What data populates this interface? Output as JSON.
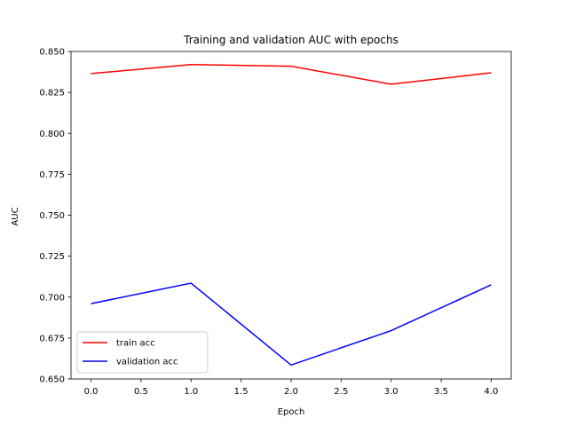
{
  "chart_data": {
    "type": "line",
    "title": "Training and validation AUC with epochs",
    "xlabel": "Epoch",
    "ylabel": "AUC",
    "xlim": [
      -0.2,
      4.2
    ],
    "ylim": [
      0.65,
      0.85
    ],
    "x_ticks": [
      "0.0",
      "0.5",
      "1.0",
      "1.5",
      "2.0",
      "2.5",
      "3.0",
      "3.5",
      "4.0"
    ],
    "y_ticks": [
      "0.650",
      "0.675",
      "0.700",
      "0.725",
      "0.750",
      "0.775",
      "0.800",
      "0.825",
      "0.850"
    ],
    "grid": false,
    "legend_position": "lower-left",
    "series": [
      {
        "name": "train acc",
        "color": "#ff0000",
        "x": [
          0,
          1,
          2,
          3,
          4
        ],
        "values": [
          0.8365,
          0.842,
          0.841,
          0.83,
          0.837
        ]
      },
      {
        "name": "validation acc",
        "color": "#0000ff",
        "x": [
          0,
          1,
          2,
          3,
          4
        ],
        "values": [
          0.696,
          0.7085,
          0.6585,
          0.6795,
          0.7075
        ]
      }
    ]
  }
}
